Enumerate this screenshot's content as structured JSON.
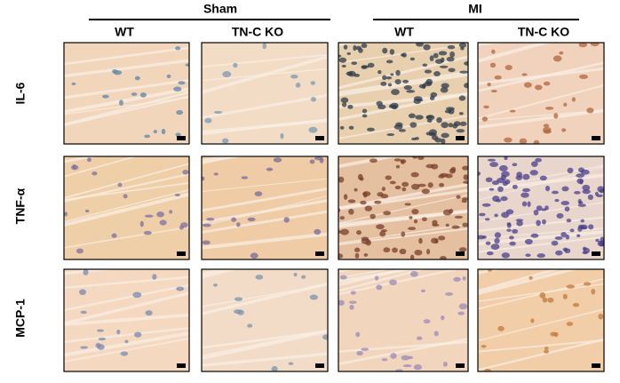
{
  "groups": [
    "Sham",
    "MI"
  ],
  "columns": [
    "WT",
    "TN-C KO",
    "WT",
    "TN-C KO"
  ],
  "rows": [
    "IL-6",
    "TNF-α",
    "MCP-1"
  ]
}
